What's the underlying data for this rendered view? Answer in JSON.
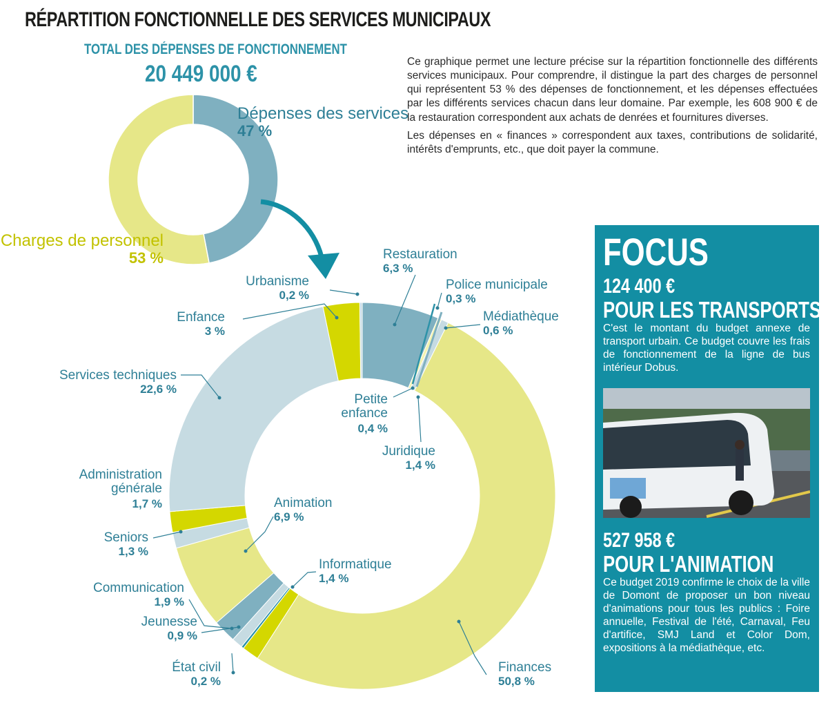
{
  "title": "RÉPARTITION FONCTIONNELLE DES SERVICES MUNICIPAUX",
  "total": {
    "label": "TOTAL DES DÉPENSES DE FONCTIONNEMENT",
    "value": "20 449 000 €"
  },
  "intro": {
    "p1": "Ce graphique permet une lecture précise sur la répartition fonctionnelle des différents services municipaux. Pour comprendre, il distingue la part des charges de personnel qui représentent 53 % des dépenses de fonctionnement, et les dépenses effectuées par les différents services chacun dans leur domaine. Par exemple, les 608 900 € de la restauration correspondent aux achats de denrées et fournitures diverses.",
    "p2": "Les dépenses en « finances » correspondent aux taxes, contributions de solidarité, intérêts d'emprunts, etc., que doit payer la commune."
  },
  "colors": {
    "teal_dark": "#2d92a8",
    "teal_mid": "#7fb0c0",
    "blue_light": "#c6dbe2",
    "yellow_pale": "#e6e788",
    "yellow_soft": "#f3f3b0",
    "yellow_bright": "#d4d700",
    "focus_bg": "#138ea3",
    "label_teal": "#2e7f96",
    "label_yellow": "#c2c200"
  },
  "chart_data": [
    {
      "type": "pie",
      "subtype": "donut",
      "categories": [
        "Dépenses des services",
        "Charges de personnel"
      ],
      "values": [
        47,
        53
      ],
      "labels": [
        {
          "name": "Dépenses des services",
          "value": "47 %"
        },
        {
          "name": "Charges de personnel",
          "value": "53 %"
        }
      ]
    },
    {
      "type": "pie",
      "subtype": "donut",
      "categories": [
        "Restauration",
        "Police municipale",
        "Médiathèque",
        "Finances",
        "Informatique",
        "État civil",
        "Jeunesse",
        "Communication",
        "Animation",
        "Seniors",
        "Administration générale",
        "Services techniques",
        "Enfance",
        "Urbanisme",
        "Petite enfance",
        "Juridique"
      ],
      "values": [
        6.3,
        0.3,
        0.6,
        50.8,
        1.4,
        0.2,
        0.9,
        1.9,
        6.9,
        1.3,
        1.7,
        22.6,
        3,
        0.2,
        0.4,
        1.4
      ],
      "labels": [
        {
          "name": "Restauration",
          "value": "6,3 %"
        },
        {
          "name": "Police municipale",
          "value": "0,3 %"
        },
        {
          "name": "Médiathèque",
          "value": "0,6 %"
        },
        {
          "name": "Finances",
          "value": "50,8 %"
        },
        {
          "name": "Informatique",
          "value": "1,4 %"
        },
        {
          "name": "État civil",
          "value": "0,2 %"
        },
        {
          "name": "Jeunesse",
          "value": "0,9 %"
        },
        {
          "name": "Communication",
          "value": "1,9 %"
        },
        {
          "name": "Animation",
          "value": "6,9 %"
        },
        {
          "name": "Seniors",
          "value": "1,3 %"
        },
        {
          "name": "Administration générale",
          "value": "1,7 %"
        },
        {
          "name": "Services techniques",
          "value": "22,6 %"
        },
        {
          "name": "Enfance",
          "value": "3 %"
        },
        {
          "name": "Urbanisme",
          "value": "0,2 %"
        },
        {
          "name": "Petite enfance",
          "value": "0,4 %"
        },
        {
          "name": "Juridique",
          "value": "1,4 %"
        }
      ]
    }
  ],
  "focus": {
    "title": "FOCUS",
    "block1": {
      "amount": "124 400 €",
      "heading": "POUR LES TRANSPORTS",
      "text": "C'est le montant du budget annexe de transport urbain. Ce budget couvre les frais de fonctionnement de la ligne de bus intérieur Dobus."
    },
    "block2": {
      "amount": "527 958 €",
      "heading": "POUR L'ANIMATION",
      "text": "Ce budget 2019 confirme le choix de la ville de Domont de proposer un bon niveau d'animations pour tous les publics : Foire annuelle, Festival de l'été, Carnaval, Feu d'artifice, SMJ Land et Color Dom, expositions à la médiathèque, etc."
    }
  }
}
